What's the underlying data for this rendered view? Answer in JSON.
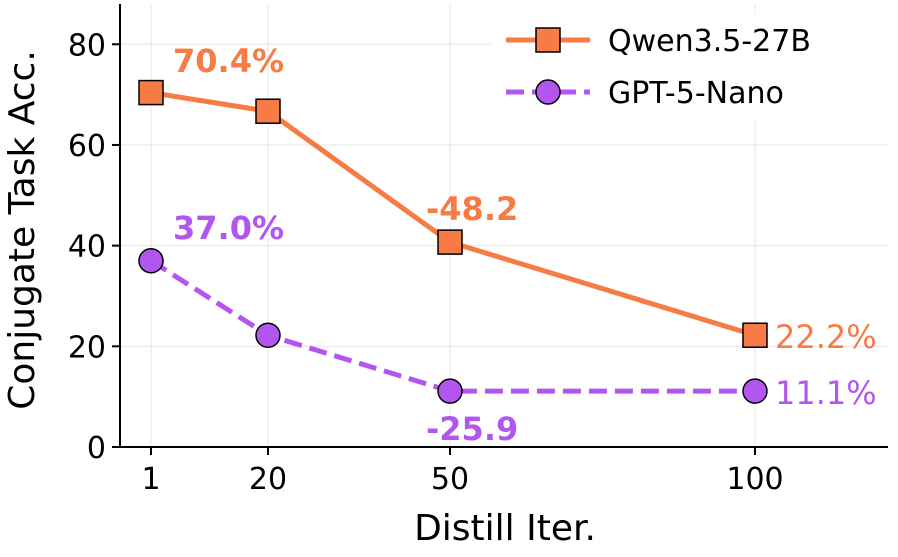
{
  "chart_data": {
    "type": "line",
    "xlabel": "Distill Iter.",
    "ylabel": "Conjugate Task Acc.",
    "x_ticks": [
      "1",
      "20",
      "50",
      "100"
    ],
    "y_ticks": [
      "0",
      "20",
      "40",
      "60",
      "80"
    ],
    "ylim": [
      0,
      88
    ],
    "grid": true,
    "legend_placement": "top-right",
    "series": [
      {
        "name": "Qwen3.5-27B",
        "color": "#f77b45",
        "marker": "square",
        "line_style": "solid",
        "x": [
          1,
          20,
          50,
          100
        ],
        "y": [
          70.4,
          66.7,
          40.7,
          22.2
        ]
      },
      {
        "name": "GPT-5-Nano",
        "color": "#b356f0",
        "marker": "circle",
        "line_style": "dashed",
        "x": [
          1,
          20,
          50,
          100
        ],
        "y": [
          37.0,
          22.2,
          11.1,
          11.1
        ]
      }
    ],
    "annotations": [
      {
        "text": "70.4%",
        "series": 0,
        "style": "bold"
      },
      {
        "text": "-48.2",
        "series": 0,
        "style": "bold"
      },
      {
        "text": "22.2%",
        "series": 0,
        "style": "normal"
      },
      {
        "text": "37.0%",
        "series": 1,
        "style": "bold"
      },
      {
        "text": "-25.9",
        "series": 1,
        "style": "bold"
      },
      {
        "text": "11.1%",
        "series": 1,
        "style": "normal"
      }
    ]
  }
}
